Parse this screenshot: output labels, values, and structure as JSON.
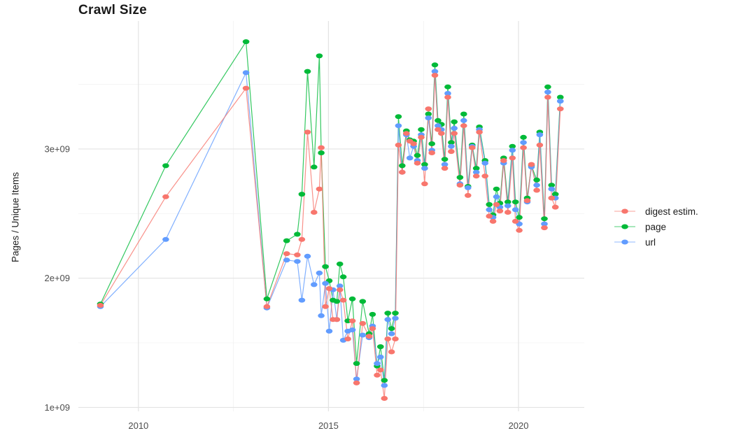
{
  "title": "Crawl Size",
  "axes": {
    "y_label": "Pages / Unique Items",
    "y_ticks": [
      "1e+09",
      "2e+09",
      "3e+09"
    ],
    "x_ticks": [
      "2010",
      "2015",
      "2020"
    ]
  },
  "colors": {
    "digest": "#F8766D",
    "page": "#00BA38",
    "url": "#619CFF",
    "grid_major": "#e3e3e3",
    "grid_minor": "#f0f0f0",
    "tick_text": "#4d4d4d",
    "background": "#ffffff"
  },
  "chart_data": {
    "type": "line",
    "title": "Crawl Size",
    "xlabel": "",
    "ylabel": "Pages / Unique Items",
    "legend_position": "right",
    "grid": true,
    "y_values_unit": "1e9 (billions)",
    "xlim": [
      2008.42,
      2021.73
    ],
    "ylim": [
      0.97,
      3.99
    ],
    "x_major_ticks": [
      2010,
      2015,
      2020
    ],
    "x_minor_ticks": [
      2012.5,
      2017.5
    ],
    "y_major_ticks": [
      1,
      2,
      3
    ],
    "y_minor_ticks": [
      1.5,
      2.5,
      3.5
    ],
    "x": [
      2009.0,
      2010.72,
      2012.83,
      2013.38,
      2013.9,
      2014.18,
      2014.3,
      2014.45,
      2014.62,
      2014.76,
      2014.81,
      2014.92,
      2015.02,
      2015.12,
      2015.22,
      2015.3,
      2015.39,
      2015.51,
      2015.63,
      2015.74,
      2015.9,
      2016.07,
      2016.16,
      2016.28,
      2016.37,
      2016.47,
      2016.56,
      2016.66,
      2016.76,
      2016.84,
      2016.94,
      2017.05,
      2017.14,
      2017.24,
      2017.34,
      2017.44,
      2017.53,
      2017.63,
      2017.72,
      2017.8,
      2017.88,
      2017.97,
      2018.06,
      2018.14,
      2018.23,
      2018.31,
      2018.46,
      2018.56,
      2018.67,
      2018.78,
      2018.89,
      2018.97,
      2019.12,
      2019.23,
      2019.33,
      2019.42,
      2019.51,
      2019.61,
      2019.72,
      2019.84,
      2019.92,
      2020.02,
      2020.13,
      2020.23,
      2020.34,
      2020.48,
      2020.56,
      2020.68,
      2020.77,
      2020.87,
      2020.97,
      2021.1
    ],
    "series": [
      {
        "name": "page",
        "key": "page",
        "color": "#00BA38",
        "values": [
          1.8,
          2.87,
          3.83,
          1.84,
          2.29,
          2.34,
          2.65,
          3.6,
          2.86,
          3.72,
          2.97,
          2.09,
          1.98,
          1.83,
          1.82,
          2.11,
          2.01,
          1.67,
          1.84,
          1.34,
          1.82,
          1.57,
          1.72,
          1.32,
          1.47,
          1.21,
          1.73,
          1.61,
          1.73,
          3.25,
          2.87,
          3.14,
          3.07,
          3.06,
          2.95,
          3.15,
          2.88,
          3.27,
          3.04,
          3.65,
          3.22,
          3.19,
          2.92,
          3.48,
          3.05,
          3.21,
          2.78,
          3.27,
          2.71,
          3.03,
          2.85,
          3.17,
          2.91,
          2.57,
          2.49,
          2.69,
          2.58,
          2.93,
          2.59,
          3.02,
          2.59,
          2.47,
          3.09,
          2.62,
          2.87,
          2.76,
          3.13,
          2.46,
          3.48,
          2.72,
          2.65,
          3.4
        ]
      },
      {
        "name": "url",
        "key": "url",
        "color": "#619CFF",
        "values": [
          1.78,
          2.3,
          3.59,
          1.77,
          2.14,
          2.13,
          1.83,
          2.17,
          1.95,
          2.04,
          1.71,
          1.96,
          1.59,
          1.91,
          1.68,
          1.94,
          1.52,
          1.59,
          1.6,
          1.22,
          1.56,
          1.54,
          1.63,
          1.34,
          1.39,
          1.17,
          1.68,
          1.57,
          1.69,
          3.18,
          2.82,
          3.11,
          2.93,
          3.02,
          2.91,
          3.11,
          2.85,
          3.24,
          2.99,
          3.6,
          3.18,
          3.15,
          2.88,
          3.43,
          3.02,
          3.16,
          2.73,
          3.22,
          2.7,
          3.02,
          2.82,
          3.15,
          2.89,
          2.53,
          2.47,
          2.63,
          2.55,
          2.89,
          2.56,
          2.99,
          2.53,
          2.42,
          3.05,
          2.59,
          2.86,
          2.72,
          3.11,
          2.42,
          3.44,
          2.69,
          2.62,
          3.37
        ]
      },
      {
        "name": "digest estim.",
        "key": "digest",
        "color": "#F8766D",
        "values": [
          1.79,
          2.63,
          3.47,
          1.78,
          2.19,
          2.18,
          2.3,
          3.13,
          2.51,
          2.69,
          3.01,
          1.78,
          1.92,
          1.68,
          1.68,
          1.91,
          1.83,
          1.53,
          1.67,
          1.19,
          1.65,
          1.55,
          1.61,
          1.25,
          1.29,
          1.07,
          1.53,
          1.43,
          1.53,
          3.03,
          2.82,
          3.12,
          3.06,
          3.04,
          2.89,
          3.09,
          2.73,
          3.31,
          2.97,
          3.57,
          3.15,
          3.12,
          2.85,
          3.4,
          2.98,
          3.12,
          2.72,
          3.18,
          2.64,
          3.01,
          2.79,
          3.13,
          2.79,
          2.48,
          2.44,
          2.57,
          2.52,
          2.91,
          2.51,
          2.93,
          2.44,
          2.37,
          3.01,
          2.6,
          2.88,
          2.68,
          3.03,
          2.39,
          3.4,
          2.62,
          2.55,
          3.31
        ]
      }
    ],
    "legend_order": [
      "digest estim.",
      "page",
      "url"
    ]
  }
}
